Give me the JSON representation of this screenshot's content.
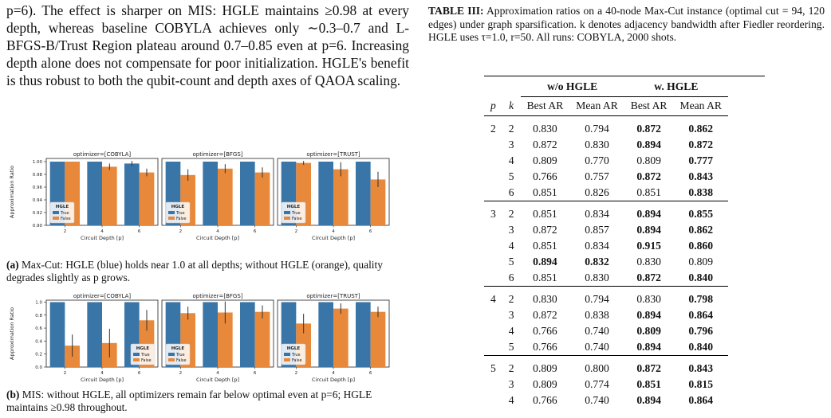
{
  "left": {
    "paragraph": "p=6). The effect is sharper on MIS: HGLE maintains ≥0.98 at every depth, whereas baseline COBYLA achieves only ∼0.3–0.7 and L-BFGS-B/Trust Region plateau around 0.7–0.85 even at p=6. Increasing depth alone does not compensate for poor initialization. HGLE's benefit is thus robust to both the qubit-count and depth axes of QAOA scaling.",
    "caption_a_label": "(a)",
    "caption_a_text": " Max-Cut: HGLE (blue) holds near 1.0 at all depths; without HGLE (orange), quality degrades slightly as p grows.",
    "caption_b_label": "(b)",
    "caption_b_text": " MIS: without HGLE, all optimizers remain far below optimal even at p=6; HGLE maintains ≥0.98 throughout."
  },
  "chart_data": [
    {
      "type": "bar",
      "panel": "a",
      "ylabel": "Approximation Ratio",
      "xlabel": "Circuit Depth [p]",
      "ylim": [
        0.9,
        1.005
      ],
      "yticks": [
        "0.90",
        "0.92",
        "0.94",
        "0.96",
        "0.98",
        "1.00"
      ],
      "categories": [
        "2",
        "4",
        "6"
      ],
      "legend_title": "HGLE",
      "legend": [
        "True",
        "False"
      ],
      "colors": {
        "True": "#3a75a8",
        "False": "#e8883a"
      },
      "facets": [
        {
          "title": "optimizer=[COBYLA]",
          "series": [
            {
              "name": "True",
              "values": [
                1.0,
                1.0,
                0.997
              ],
              "err": [
                0,
                0,
                0.004
              ]
            },
            {
              "name": "False",
              "values": [
                1.0,
                0.992,
                0.983
              ],
              "err": [
                0,
                0.005,
                0.006
              ]
            }
          ]
        },
        {
          "title": "optimizer=[BFGS]",
          "series": [
            {
              "name": "True",
              "values": [
                1.0,
                1.0,
                1.0
              ],
              "err": [
                0,
                0,
                0
              ]
            },
            {
              "name": "False",
              "values": [
                0.979,
                0.989,
                0.983
              ],
              "err": [
                0.009,
                0.007,
                0.008
              ]
            }
          ]
        },
        {
          "title": "optimizer=[TRUST]",
          "series": [
            {
              "name": "True",
              "values": [
                1.0,
                1.0,
                1.0
              ],
              "err": [
                0,
                0,
                0
              ]
            },
            {
              "name": "False",
              "values": [
                0.998,
                0.988,
                0.972
              ],
              "err": [
                0.003,
                0.011,
                0.012
              ]
            }
          ]
        }
      ]
    },
    {
      "type": "bar",
      "panel": "b",
      "ylabel": "Approximation Ratio",
      "xlabel": "Circuit Depth [p]",
      "ylim": [
        0.0,
        1.03
      ],
      "yticks": [
        "0.0",
        "0.2",
        "0.4",
        "0.6",
        "0.8",
        "1.0"
      ],
      "categories": [
        "2",
        "4",
        "6"
      ],
      "legend_title": "HGLE",
      "legend": [
        "True",
        "False"
      ],
      "colors": {
        "True": "#3a75a8",
        "False": "#e8883a"
      },
      "facets": [
        {
          "title": "optimizer=[COBYLA]",
          "series": [
            {
              "name": "True",
              "values": [
                1.0,
                1.0,
                1.0
              ],
              "err": [
                0,
                0,
                0
              ]
            },
            {
              "name": "False",
              "values": [
                0.33,
                0.37,
                0.72
              ],
              "err": [
                0.17,
                0.22,
                0.16
              ]
            }
          ]
        },
        {
          "title": "optimizer=[BFGS]",
          "series": [
            {
              "name": "True",
              "values": [
                1.0,
                1.0,
                1.0
              ],
              "err": [
                0,
                0,
                0
              ]
            },
            {
              "name": "False",
              "values": [
                0.83,
                0.84,
                0.85
              ],
              "err": [
                0.1,
                0.17,
                0.1
              ]
            }
          ]
        },
        {
          "title": "optimizer=[TRUST]",
          "series": [
            {
              "name": "True",
              "values": [
                1.0,
                1.0,
                1.0
              ],
              "err": [
                0,
                0,
                0
              ]
            },
            {
              "name": "False",
              "values": [
                0.67,
                0.9,
                0.85
              ],
              "err": [
                0.15,
                0.08,
                0.08
              ]
            }
          ]
        }
      ]
    }
  ],
  "table": {
    "caption_label": "TABLE III:",
    "caption_text": " Approximation ratios on a 40-node Max-Cut instance (optimal cut = 94, 120 edges) under graph sparsification. k denotes adjacency bandwidth after Fiedler reordering. HGLE uses τ=1.0, r=50. All runs: COBYLA, 2000 shots.",
    "group1": "w/o HGLE",
    "group2": "w. HGLE",
    "col_p": "p",
    "col_k": "k",
    "col_best1": "Best AR",
    "col_mean1": "Mean AR",
    "col_best2": "Best AR",
    "col_mean2": "Mean AR",
    "rows": [
      {
        "p": "2",
        "k": "2",
        "b1": "0.830",
        "m1": "0.794",
        "b2": "0.872",
        "m2": "0.862",
        "bold": [
          0,
          0,
          1,
          1
        ]
      },
      {
        "p": "",
        "k": "3",
        "b1": "0.872",
        "m1": "0.830",
        "b2": "0.894",
        "m2": "0.872",
        "bold": [
          0,
          0,
          1,
          1
        ]
      },
      {
        "p": "",
        "k": "4",
        "b1": "0.809",
        "m1": "0.770",
        "b2": "0.809",
        "m2": "0.777",
        "bold": [
          0,
          0,
          0,
          1
        ]
      },
      {
        "p": "",
        "k": "5",
        "b1": "0.766",
        "m1": "0.757",
        "b2": "0.872",
        "m2": "0.843",
        "bold": [
          0,
          0,
          1,
          1
        ]
      },
      {
        "p": "",
        "k": "6",
        "b1": "0.851",
        "m1": "0.826",
        "b2": "0.851",
        "m2": "0.838",
        "bold": [
          0,
          0,
          0,
          1
        ]
      },
      {
        "p": "3",
        "k": "2",
        "b1": "0.851",
        "m1": "0.834",
        "b2": "0.894",
        "m2": "0.855",
        "bold": [
          0,
          0,
          1,
          1
        ]
      },
      {
        "p": "",
        "k": "3",
        "b1": "0.872",
        "m1": "0.857",
        "b2": "0.894",
        "m2": "0.862",
        "bold": [
          0,
          0,
          1,
          1
        ]
      },
      {
        "p": "",
        "k": "4",
        "b1": "0.851",
        "m1": "0.834",
        "b2": "0.915",
        "m2": "0.860",
        "bold": [
          0,
          0,
          1,
          1
        ]
      },
      {
        "p": "",
        "k": "5",
        "b1": "0.894",
        "m1": "0.832",
        "b2": "0.830",
        "m2": "0.809",
        "bold": [
          1,
          1,
          0,
          0
        ]
      },
      {
        "p": "",
        "k": "6",
        "b1": "0.851",
        "m1": "0.830",
        "b2": "0.872",
        "m2": "0.840",
        "bold": [
          0,
          0,
          1,
          1
        ]
      },
      {
        "p": "4",
        "k": "2",
        "b1": "0.830",
        "m1": "0.794",
        "b2": "0.830",
        "m2": "0.798",
        "bold": [
          0,
          0,
          0,
          1
        ]
      },
      {
        "p": "",
        "k": "3",
        "b1": "0.872",
        "m1": "0.838",
        "b2": "0.894",
        "m2": "0.864",
        "bold": [
          0,
          0,
          1,
          1
        ]
      },
      {
        "p": "",
        "k": "4",
        "b1": "0.766",
        "m1": "0.740",
        "b2": "0.809",
        "m2": "0.796",
        "bold": [
          0,
          0,
          1,
          1
        ]
      },
      {
        "p": "",
        "k": "5",
        "b1": "0.766",
        "m1": "0.740",
        "b2": "0.894",
        "m2": "0.840",
        "bold": [
          0,
          0,
          1,
          1
        ]
      },
      {
        "p": "5",
        "k": "2",
        "b1": "0.809",
        "m1": "0.800",
        "b2": "0.872",
        "m2": "0.843",
        "bold": [
          0,
          0,
          1,
          1
        ]
      },
      {
        "p": "",
        "k": "3",
        "b1": "0.809",
        "m1": "0.774",
        "b2": "0.851",
        "m2": "0.815",
        "bold": [
          0,
          0,
          1,
          1
        ]
      },
      {
        "p": "",
        "k": "4",
        "b1": "0.766",
        "m1": "0.740",
        "b2": "0.894",
        "m2": "0.864",
        "bold": [
          0,
          0,
          1,
          1
        ]
      }
    ]
  }
}
